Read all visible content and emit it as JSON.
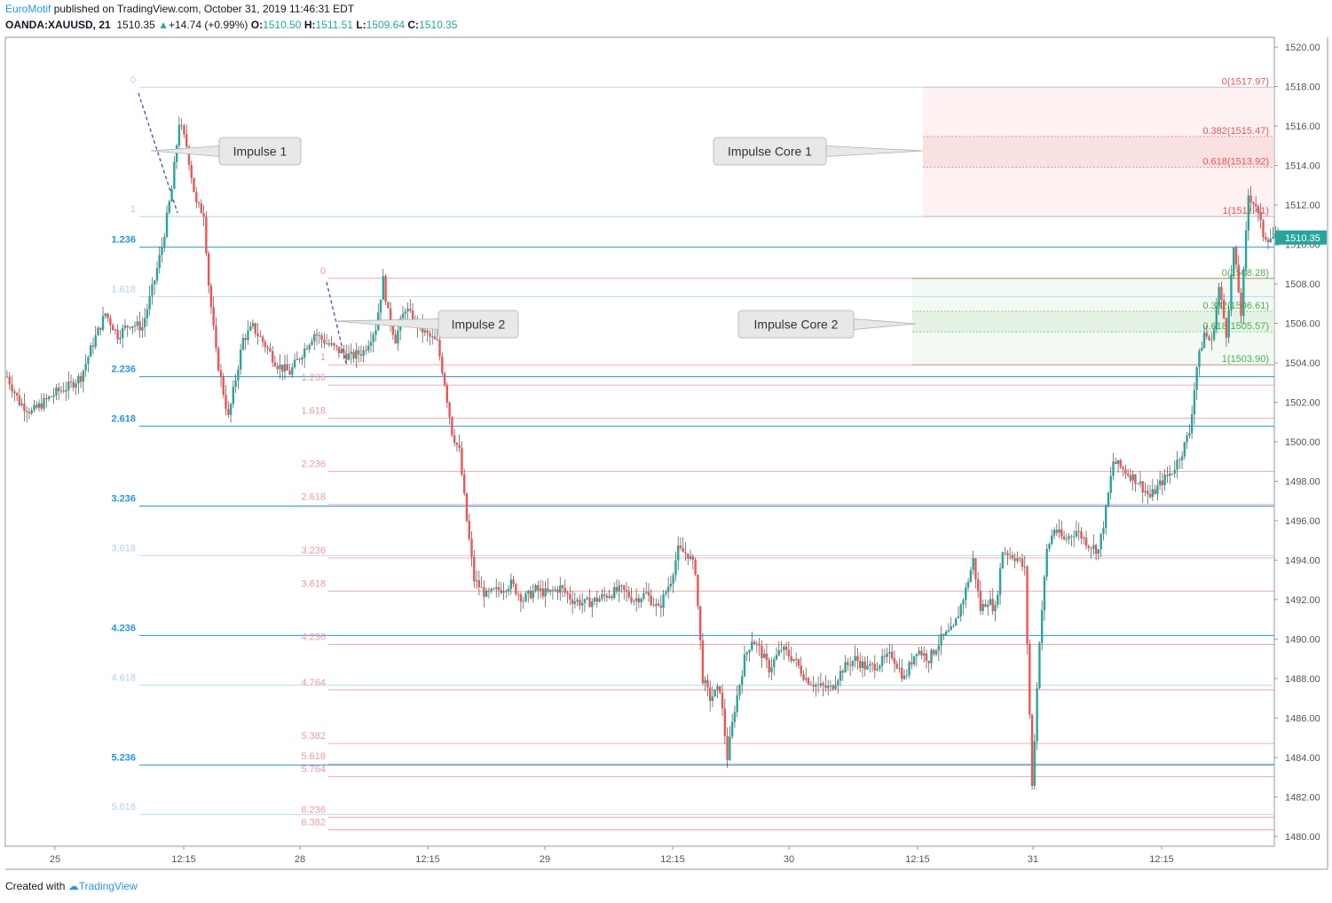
{
  "header": {
    "author": "EuroMotif",
    "published_text": "published on TradingView.com, October 31, 2019 11:46:31 EDT",
    "symbol": "OANDA:XAUUSD, 21",
    "last": "1510.35",
    "change": "+14.74 (+0.99%)",
    "o_label": "O:",
    "o": "1510.50",
    "h_label": "H:",
    "h": "1511.51",
    "l_label": "L:",
    "l": "1509.64",
    "c_label": "C:",
    "c": "1510.35"
  },
  "footer": {
    "created_with": "Created with",
    "brand": "TradingView"
  },
  "colors": {
    "up": "#26a69a",
    "down": "#ef5350",
    "blue_fib": "#2196f3",
    "light_blue_fib": "#a8d4ef",
    "red_fib": "#ef9a9a",
    "green_fib": "#81c784"
  },
  "chart_data": {
    "type": "candlestick",
    "y_axis": {
      "min": 1479.5,
      "max": 1520.5,
      "ticks": [
        "1480.00",
        "1482.00",
        "1484.00",
        "1486.00",
        "1488.00",
        "1490.00",
        "1492.00",
        "1494.00",
        "1496.00",
        "1498.00",
        "1500.00",
        "1502.00",
        "1504.00",
        "1506.00",
        "1508.00",
        "1510.00",
        "1512.00",
        "1514.00",
        "1516.00",
        "1518.00",
        "1520.00"
      ]
    },
    "x_axis": {
      "ticks": [
        "25",
        "12:15",
        "28",
        "12:15",
        "29",
        "12:15",
        "30",
        "12:15",
        "31",
        "12:15"
      ]
    },
    "last_price": 1510.35,
    "path": [
      [
        0,
        1503.3
      ],
      [
        5,
        1502.0
      ],
      [
        10,
        1501.5
      ],
      [
        15,
        1502.0
      ],
      [
        20,
        1502.5
      ],
      [
        25,
        1502.8
      ],
      [
        30,
        1503.3
      ],
      [
        35,
        1505.0
      ],
      [
        40,
        1506.5
      ],
      [
        45,
        1505.4
      ],
      [
        50,
        1506.0
      ],
      [
        55,
        1505.8
      ],
      [
        60,
        1508.2
      ],
      [
        63,
        1509.9
      ],
      [
        67,
        1512.8
      ],
      [
        70,
        1516.2
      ],
      [
        73,
        1515.0
      ],
      [
        77,
        1512.0
      ],
      [
        80,
        1511.6
      ],
      [
        82,
        1508.0
      ],
      [
        85,
        1504.5
      ],
      [
        88,
        1502.5
      ],
      [
        90,
        1501.2
      ],
      [
        93,
        1503.2
      ],
      [
        96,
        1505.2
      ],
      [
        100,
        1505.8
      ],
      [
        105,
        1504.9
      ],
      [
        110,
        1503.9
      ],
      [
        115,
        1503.5
      ],
      [
        120,
        1504.5
      ],
      [
        125,
        1505.5
      ],
      [
        130,
        1505.0
      ],
      [
        135,
        1504.6
      ],
      [
        140,
        1504.3
      ],
      [
        145,
        1504.6
      ],
      [
        150,
        1505.8
      ],
      [
        153,
        1508.2
      ],
      [
        155,
        1506.5
      ],
      [
        158,
        1505.2
      ],
      [
        162,
        1506.8
      ],
      [
        165,
        1506.2
      ],
      [
        170,
        1505.5
      ],
      [
        175,
        1505.0
      ],
      [
        178,
        1503.0
      ],
      [
        181,
        1500.5
      ],
      [
        184,
        1499.5
      ],
      [
        187,
        1496.0
      ],
      [
        190,
        1493.0
      ],
      [
        195,
        1492.2
      ],
      [
        200,
        1492.5
      ],
      [
        205,
        1492.8
      ],
      [
        210,
        1492.0
      ],
      [
        215,
        1492.5
      ],
      [
        220,
        1492.3
      ],
      [
        225,
        1492.6
      ],
      [
        230,
        1492.0
      ],
      [
        235,
        1491.8
      ],
      [
        240,
        1492.0
      ],
      [
        245,
        1492.3
      ],
      [
        250,
        1492.5
      ],
      [
        255,
        1492.0
      ],
      [
        260,
        1492.3
      ],
      [
        265,
        1491.5
      ],
      [
        270,
        1493.0
      ],
      [
        273,
        1494.5
      ],
      [
        277,
        1494.3
      ],
      [
        280,
        1493.5
      ],
      [
        283,
        1488.0
      ],
      [
        286,
        1487.0
      ],
      [
        290,
        1487.5
      ],
      [
        293,
        1484.0
      ],
      [
        296,
        1486.5
      ],
      [
        300,
        1489.0
      ],
      [
        303,
        1490.0
      ],
      [
        306,
        1489.5
      ],
      [
        310,
        1488.5
      ],
      [
        315,
        1489.5
      ],
      [
        320,
        1489.0
      ],
      [
        325,
        1488.0
      ],
      [
        330,
        1487.6
      ],
      [
        335,
        1487.5
      ],
      [
        340,
        1488.5
      ],
      [
        345,
        1489.0
      ],
      [
        350,
        1488.5
      ],
      [
        355,
        1488.8
      ],
      [
        360,
        1489.2
      ],
      [
        365,
        1488.0
      ],
      [
        370,
        1489.5
      ],
      [
        375,
        1489.0
      ],
      [
        380,
        1490.0
      ],
      [
        385,
        1490.5
      ],
      [
        390,
        1492.5
      ],
      [
        393,
        1494.0
      ],
      [
        396,
        1491.5
      ],
      [
        399,
        1492.0
      ],
      [
        402,
        1491.5
      ],
      [
        405,
        1494.5
      ],
      [
        408,
        1494.3
      ],
      [
        411,
        1494.1
      ],
      [
        414,
        1493.5
      ],
      [
        417,
        1482.5
      ],
      [
        420,
        1490.0
      ],
      [
        423,
        1494.5
      ],
      [
        426,
        1495.6
      ],
      [
        430,
        1495.0
      ],
      [
        435,
        1495.5
      ],
      [
        440,
        1494.8
      ],
      [
        444,
        1494.5
      ],
      [
        447,
        1496.5
      ],
      [
        450,
        1499.0
      ],
      [
        455,
        1498.5
      ],
      [
        460,
        1498.0
      ],
      [
        465,
        1497.2
      ],
      [
        470,
        1498.0
      ],
      [
        474,
        1498.5
      ],
      [
        478,
        1499.5
      ],
      [
        481,
        1500.5
      ],
      [
        484,
        1503.8
      ],
      [
        487,
        1505.5
      ],
      [
        490,
        1505.0
      ],
      [
        493,
        1507.8
      ],
      [
        496,
        1505.5
      ],
      [
        499,
        1509.8
      ],
      [
        502,
        1506.5
      ],
      [
        505,
        1512.5
      ],
      [
        508,
        1512.0
      ],
      [
        511,
        1510.5
      ],
      [
        513,
        1510.35
      ]
    ],
    "fib_sets": [
      {
        "name": "blue_extension",
        "color": "#2196f3",
        "levels": [
          {
            "label": "0",
            "price": 1517.97,
            "faint": true
          },
          {
            "label": "1",
            "price": 1511.41,
            "faint": true
          },
          {
            "label": "1.236",
            "price": 1509.86,
            "faint": false
          },
          {
            "label": "1.618",
            "price": 1507.35,
            "faint": true
          },
          {
            "label": "2.236",
            "price": 1503.3,
            "faint": false
          },
          {
            "label": "2.618",
            "price": 1500.79,
            "faint": false
          },
          {
            "label": "3.236",
            "price": 1496.74,
            "faint": false
          },
          {
            "label": "3.618",
            "price": 1494.23,
            "faint": true
          },
          {
            "label": "4.236",
            "price": 1490.18,
            "faint": false
          },
          {
            "label": "4.618",
            "price": 1487.67,
            "faint": true
          },
          {
            "label": "5.236",
            "price": 1483.62,
            "faint": false
          },
          {
            "label": "5.618",
            "price": 1481.11,
            "faint": true
          }
        ]
      },
      {
        "name": "red_extension",
        "color": "#ef5350",
        "levels": [
          {
            "label": "0",
            "price": 1508.28
          },
          {
            "label": "1",
            "price": 1503.9
          },
          {
            "label": "1.236",
            "price": 1502.87
          },
          {
            "label": "1.618",
            "price": 1501.2
          },
          {
            "label": "2.236",
            "price": 1498.49
          },
          {
            "label": "2.618",
            "price": 1496.82
          },
          {
            "label": "3.236",
            "price": 1494.11
          },
          {
            "label": "3.618",
            "price": 1492.43
          },
          {
            "label": "4.236",
            "price": 1489.73
          },
          {
            "label": "4.764",
            "price": 1487.42
          },
          {
            "label": "5.382",
            "price": 1484.71
          },
          {
            "label": "5.618",
            "price": 1483.67
          },
          {
            "label": "5.764",
            "price": 1483.03
          },
          {
            "label": "6.236",
            "price": 1480.97
          },
          {
            "label": "6.382",
            "price": 1480.33
          }
        ]
      }
    ],
    "zones": [
      {
        "name": "Impulse Core 1",
        "color": "#f8d7d7",
        "levels": [
          {
            "label": "0(1517.97)",
            "price": 1517.97
          },
          {
            "label": "0.382(1515.47)",
            "price": 1515.47
          },
          {
            "label": "0.618(1513.92)",
            "price": 1513.92
          },
          {
            "label": "1(1511.41)",
            "price": 1511.41
          }
        ]
      },
      {
        "name": "Impulse Core 2",
        "color": "#dcefdc",
        "levels": [
          {
            "label": "0(1508.28)",
            "price": 1508.28
          },
          {
            "label": "0.382(1506.61)",
            "price": 1506.61
          },
          {
            "label": "0.618(1505.57)",
            "price": 1505.57
          },
          {
            "label": "1(1503.90)",
            "price": 1503.9
          }
        ]
      }
    ],
    "callouts": [
      {
        "text": "Impulse 1"
      },
      {
        "text": "Impulse 2"
      },
      {
        "text": "Impulse Core 1"
      },
      {
        "text": "Impulse Core 2"
      }
    ]
  }
}
